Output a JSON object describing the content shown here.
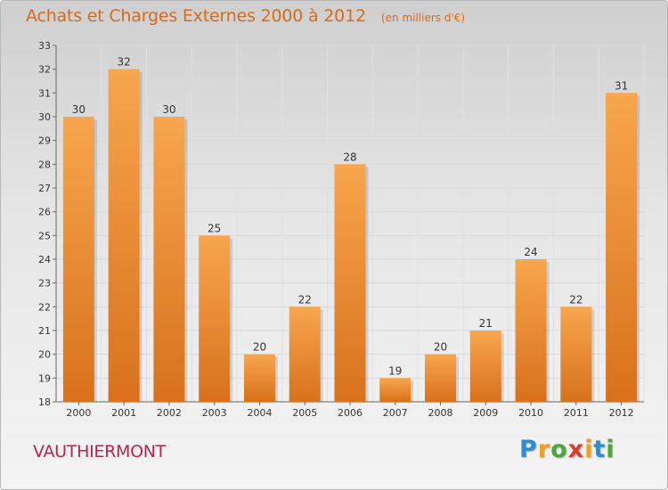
{
  "title": "Achats et Charges Externes 2000 à 2012",
  "subtitle": "(en milliers d'€)",
  "place": "VAUTHIERMONT",
  "logo": {
    "letters": [
      "P",
      "r",
      "o",
      "x",
      "i",
      "t",
      "i"
    ],
    "colors": [
      "#2a8fd6",
      "#f2a020",
      "#4aa83a",
      "#e23a2a",
      "#f2a020",
      "#2a8fd6",
      "#4aa83a"
    ]
  },
  "colors": {
    "bar_light": "#f7a64e",
    "bar_dark": "#d8711c",
    "title": "#d86a1a",
    "place": "#b5264d"
  },
  "chart_data": {
    "type": "bar",
    "categories": [
      "2000",
      "2001",
      "2002",
      "2003",
      "2004",
      "2005",
      "2006",
      "2007",
      "2008",
      "2009",
      "2010",
      "2011",
      "2012"
    ],
    "values": [
      30,
      32,
      30,
      25,
      20,
      22,
      28,
      19,
      20,
      21,
      24,
      22,
      31
    ],
    "ylim": [
      18,
      33
    ],
    "yticks": [
      18,
      19,
      20,
      21,
      22,
      23,
      24,
      25,
      26,
      27,
      28,
      29,
      30,
      31,
      32,
      33
    ],
    "grid": true
  }
}
